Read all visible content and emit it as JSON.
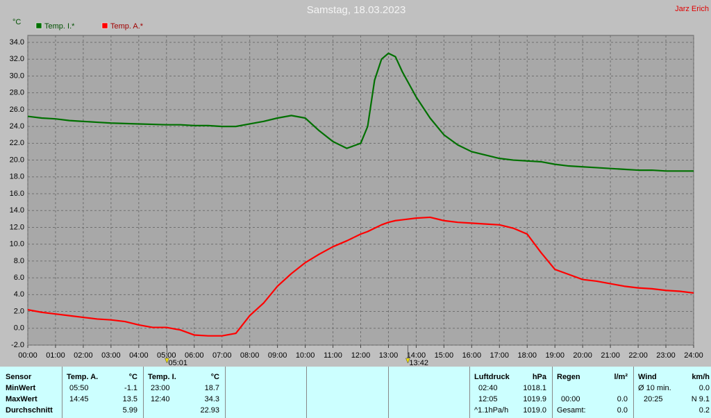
{
  "chart_data": {
    "type": "line",
    "title": "Samstag, 18.03.2023",
    "author": "Jarz Erich",
    "y_label": "°C",
    "x": [
      0,
      0.5,
      1,
      1.5,
      2,
      2.5,
      3,
      3.5,
      4,
      4.5,
      5,
      5.5,
      6,
      6.5,
      7,
      7.5,
      8,
      8.5,
      9,
      9.5,
      10,
      10.5,
      11,
      11.5,
      12,
      12.25,
      12.5,
      12.75,
      13,
      13.25,
      13.5,
      14,
      14.5,
      15,
      15.5,
      16,
      16.5,
      17,
      17.5,
      18,
      18.5,
      19,
      19.5,
      20,
      20.5,
      21,
      21.5,
      22,
      22.5,
      23,
      23.5,
      24
    ],
    "series": [
      {
        "name": "Temp. I.*",
        "color": "#007000",
        "values": [
          25.2,
          25.0,
          24.9,
          24.7,
          24.6,
          24.5,
          24.4,
          24.35,
          24.3,
          24.25,
          24.2,
          24.2,
          24.1,
          24.1,
          24.0,
          24.0,
          24.3,
          24.6,
          25.0,
          25.3,
          25.0,
          23.5,
          22.2,
          21.4,
          22.0,
          24.0,
          29.5,
          32.0,
          32.7,
          32.3,
          30.5,
          27.5,
          25.0,
          23.0,
          21.8,
          21.0,
          20.6,
          20.2,
          20.0,
          19.9,
          19.8,
          19.5,
          19.3,
          19.2,
          19.1,
          19.0,
          18.9,
          18.8,
          18.8,
          18.7,
          18.7,
          18.7
        ]
      },
      {
        "name": "Temp. A.*",
        "color": "#ff0000",
        "values": [
          2.2,
          1.9,
          1.7,
          1.5,
          1.3,
          1.1,
          1.0,
          0.8,
          0.4,
          0.1,
          0.1,
          -0.2,
          -0.8,
          -0.9,
          -0.9,
          -0.6,
          1.5,
          3.0,
          5.0,
          6.5,
          7.8,
          8.8,
          9.7,
          10.4,
          11.2,
          11.5,
          11.9,
          12.3,
          12.6,
          12.8,
          12.9,
          13.1,
          13.2,
          12.8,
          12.6,
          12.5,
          12.4,
          12.3,
          11.9,
          11.2,
          9.0,
          7.0,
          6.4,
          5.8,
          5.6,
          5.3,
          5.0,
          4.8,
          4.7,
          4.5,
          4.4,
          4.2
        ]
      }
    ],
    "xlim": [
      0,
      24
    ],
    "xticks": [
      {
        "value": 0,
        "label": "00:00"
      },
      {
        "value": 1,
        "label": "01:00"
      },
      {
        "value": 2,
        "label": "02:00"
      },
      {
        "value": 3,
        "label": "03:00"
      },
      {
        "value": 4,
        "label": "04:00"
      },
      {
        "value": 5,
        "label": "05:00"
      },
      {
        "value": 6,
        "label": "06:00"
      },
      {
        "value": 7,
        "label": "07:00"
      },
      {
        "value": 8,
        "label": "08:00"
      },
      {
        "value": 9,
        "label": "09:00"
      },
      {
        "value": 10,
        "label": "10:00"
      },
      {
        "value": 11,
        "label": "11:00"
      },
      {
        "value": 12,
        "label": "12:00"
      },
      {
        "value": 13,
        "label": "13:00"
      },
      {
        "value": 14,
        "label": "14:00"
      },
      {
        "value": 15,
        "label": "15:00"
      },
      {
        "value": 16,
        "label": "16:00"
      },
      {
        "value": 17,
        "label": "17:00"
      },
      {
        "value": 18,
        "label": "18:00"
      },
      {
        "value": 19,
        "label": "19:00"
      },
      {
        "value": 20,
        "label": "20:00"
      },
      {
        "value": 21,
        "label": "21:00"
      },
      {
        "value": 22,
        "label": "22:00"
      },
      {
        "value": 23,
        "label": "23:00"
      },
      {
        "value": 24,
        "label": "24:00"
      }
    ],
    "ylim": [
      -2,
      34
    ],
    "yticks": [
      {
        "value": -2,
        "label": "-2.0"
      },
      {
        "value": 0,
        "label": "0.0"
      },
      {
        "value": 2,
        "label": "2.0"
      },
      {
        "value": 4,
        "label": "4.0"
      },
      {
        "value": 6,
        "label": "6.0"
      },
      {
        "value": 8,
        "label": "8.0"
      },
      {
        "value": 10,
        "label": "10.0"
      },
      {
        "value": 12,
        "label": "12.0"
      },
      {
        "value": 14,
        "label": "14.0"
      },
      {
        "value": 16,
        "label": "16.0"
      },
      {
        "value": 18,
        "label": "18.0"
      },
      {
        "value": 20,
        "label": "20.0"
      },
      {
        "value": 22,
        "label": "22.0"
      },
      {
        "value": 24,
        "label": "24.0"
      },
      {
        "value": 26,
        "label": "26.0"
      },
      {
        "value": 28,
        "label": "28.0"
      },
      {
        "value": 30,
        "label": "30.0"
      },
      {
        "value": 32,
        "label": "32.0"
      },
      {
        "value": 34,
        "label": "34.0"
      }
    ],
    "markers": [
      {
        "value": 5.0167,
        "label": "05:01"
      },
      {
        "value": 13.7,
        "label": "13:42"
      }
    ],
    "grid": true
  },
  "stats": {
    "sensor": {
      "header": "Sensor",
      "r1": "MinWert",
      "r2": "MaxWert",
      "r3": "Durchschnitt"
    },
    "temp_a": {
      "header": "Temp. A.",
      "unit": "°C",
      "r1": {
        "left": "05:50",
        "right": "-1.1"
      },
      "r2": {
        "left": "14:45",
        "right": "13.5"
      },
      "r3": {
        "right": "5.99"
      }
    },
    "temp_i": {
      "header": "Temp. I.",
      "unit": "°C",
      "r1": {
        "left": "23:00",
        "right": "18.7"
      },
      "r2": {
        "left": "12:40",
        "right": "34.3"
      },
      "r3": {
        "right": "22.93"
      }
    },
    "luftdruck": {
      "header": "Luftdruck",
      "unit": "hPa",
      "r1": {
        "left": "02:40",
        "right": "1018.1"
      },
      "r2": {
        "left": "12:05",
        "right": "1019.9"
      },
      "r3": {
        "left": "^1.1hPa/h",
        "right": "1019.0"
      }
    },
    "regen": {
      "header": "Regen",
      "unit": "l/m²",
      "r2": {
        "left": "00:00",
        "right": "0.0"
      },
      "r3": {
        "left": "Gesamt:",
        "right": "0.0"
      }
    },
    "wind": {
      "header": "Wind",
      "unit": "km/h",
      "r1": {
        "left": "Ø 10 min.",
        "right": "0.0"
      },
      "r2": {
        "left": "20:25",
        "right": "N 9.1"
      },
      "r3": {
        "right": "0.2"
      }
    }
  }
}
